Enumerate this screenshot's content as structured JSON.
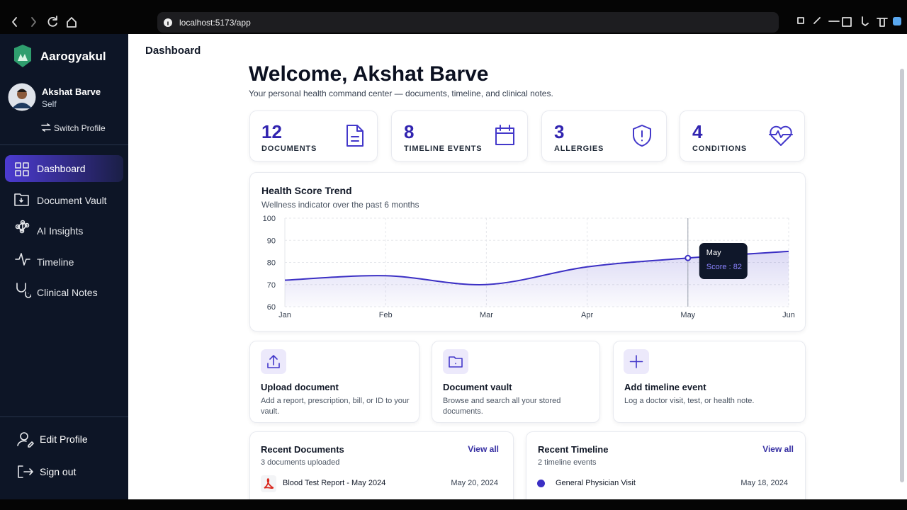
{
  "browser": {
    "url": "localhost:5173/app"
  },
  "sidebar": {
    "brand": "Aarogyakul",
    "profile": {
      "name": "Akshat Barve",
      "relation": "Self",
      "switch": "Switch Profile"
    },
    "nav": [
      "Dashboard",
      "Document Vault",
      "AI Insights",
      "Timeline",
      "Clinical Notes"
    ],
    "bottom": [
      "Edit Profile",
      "Sign out"
    ]
  },
  "header": {
    "title": "Dashboard"
  },
  "welcome": {
    "title": "Welcome, Akshat Barve",
    "subtitle": "Your personal health command center — documents, timeline, and clinical notes."
  },
  "stats": [
    {
      "value": 12,
      "label": "DOCUMENTS"
    },
    {
      "value": 8,
      "label": "TIMELINE EVENTS"
    },
    {
      "value": 3,
      "label": "ALLERGIES"
    },
    {
      "value": 4,
      "label": "CONDITIONS"
    }
  ],
  "chart_data": {
    "type": "line",
    "title": "Health Score Trend",
    "subtitle": "Wellness indicator over the past 6 months",
    "categories": [
      "Jan",
      "Feb",
      "Mar",
      "Apr",
      "May",
      "Jun"
    ],
    "values": [
      72,
      74,
      70,
      78,
      82,
      85
    ],
    "color": "#3b2fc4",
    "ylim": [
      60,
      100
    ],
    "yticks": [
      60,
      70,
      80,
      90,
      100
    ],
    "grid": true,
    "tooltip": {
      "title": "May",
      "label": "Score : 82"
    }
  },
  "actions": [
    {
      "title": "Upload document",
      "description": "Add a report, prescription, bill, or ID to your vault."
    },
    {
      "title": "Document vault",
      "description": "Browse and search all your stored documents."
    },
    {
      "title": "Add timeline event",
      "description": "Log a doctor visit, test, or health note."
    }
  ],
  "recent_documents": {
    "title": "Recent Documents",
    "view_all": "View all",
    "subtitle": "3 documents uploaded",
    "items": [
      {
        "name": "Blood Test Report - May 2024",
        "date": "May 20, 2024"
      }
    ]
  },
  "recent_timeline": {
    "title": "Recent Timeline",
    "view_all": "View all",
    "subtitle": "2 timeline events",
    "items": [
      {
        "name": "General Physician Visit",
        "date": "May 18, 2024"
      }
    ]
  }
}
